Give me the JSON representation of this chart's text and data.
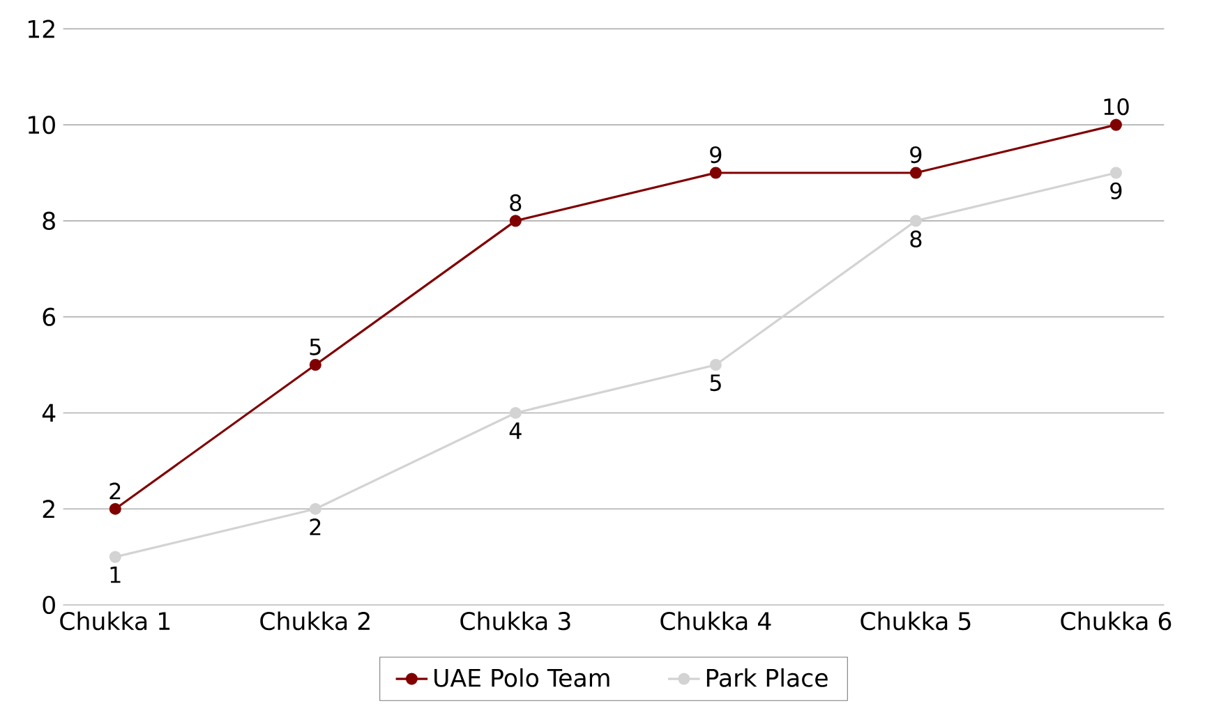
{
  "chart_data": {
    "type": "line",
    "categories": [
      "Chukka 1",
      "Chukka 2",
      "Chukka 3",
      "Chukka 4",
      "Chukka 5",
      "Chukka 6"
    ],
    "series": [
      {
        "name": "UAE Polo Team",
        "color": "#800000",
        "values": [
          2,
          5,
          8,
          9,
          9,
          10
        ]
      },
      {
        "name": "Park Place",
        "color": "#d3d3d3",
        "values": [
          1,
          2,
          4,
          5,
          8,
          9
        ]
      }
    ],
    "ylim": [
      0,
      12
    ],
    "yticks": [
      0,
      2,
      4,
      6,
      8,
      10,
      12
    ],
    "grid": "y",
    "legend": "bottom",
    "marker": "circle",
    "line_style": "solid",
    "data_labels": true
  }
}
